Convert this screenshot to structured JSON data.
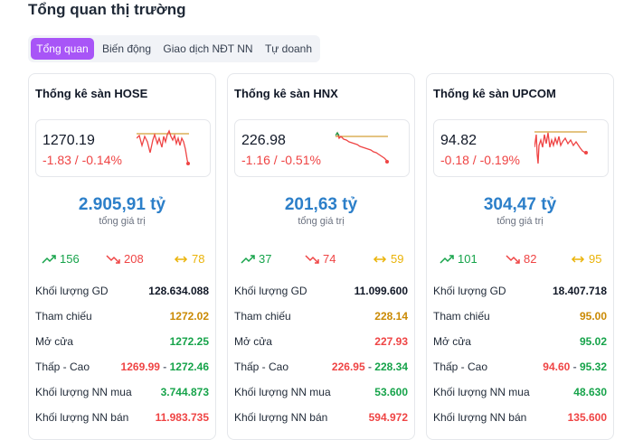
{
  "page": {
    "title": "Tổng quan thị trường"
  },
  "tabs": [
    {
      "label": "Tổng quan"
    },
    {
      "label": "Biến động"
    },
    {
      "label": "Giao dịch NĐT NN"
    },
    {
      "label": "Tự doanh"
    }
  ],
  "colors": {
    "accent": "#a855f7",
    "up": "#16a34a",
    "down": "#ef4444",
    "reference": "#ca8a04",
    "value": "#2c7fc9"
  },
  "exchanges": [
    {
      "title": "Thống kê sàn HOSE",
      "index": "1270.19",
      "change": "-1.83 / -0.14%",
      "total_value": "2.905,91 tỷ",
      "total_value_label": "tổng giá trị",
      "advancers": "156",
      "decliners": "208",
      "unchanged": "78",
      "stats": {
        "volume_label": "Khối lượng GD",
        "volume": "128.634.088",
        "ref_label": "Tham chiếu",
        "ref": "1272.02",
        "open_label": "Mở cửa",
        "open": "1272.25",
        "range_label": "Thấp - Cao",
        "low": "1269.99",
        "high": "1272.46",
        "foreign_buy_label": "Khối lượng NN mua",
        "foreign_buy": "3.744.873",
        "foreign_sell_label": "Khối lượng NN bán",
        "foreign_sell": "11.983.735"
      }
    },
    {
      "title": "Thống kê sàn HNX",
      "index": "226.98",
      "change": "-1.16 / -0.51%",
      "total_value": "201,63 tỷ",
      "total_value_label": "tổng giá trị",
      "advancers": "37",
      "decliners": "74",
      "unchanged": "59",
      "stats": {
        "volume_label": "Khối lượng GD",
        "volume": "11.099.600",
        "ref_label": "Tham chiếu",
        "ref": "228.14",
        "open_label": "Mở cửa",
        "open": "227.93",
        "range_label": "Thấp - Cao",
        "low": "226.95",
        "high": "228.34",
        "foreign_buy_label": "Khối lượng NN mua",
        "foreign_buy": "53.600",
        "foreign_sell_label": "Khối lượng NN bán",
        "foreign_sell": "594.972"
      }
    },
    {
      "title": "Thống kê sàn UPCOM",
      "index": "94.82",
      "change": "-0.18 / -0.19%",
      "total_value": "304,47 tỷ",
      "total_value_label": "tổng giá trị",
      "advancers": "101",
      "decliners": "82",
      "unchanged": "95",
      "stats": {
        "volume_label": "Khối lượng GD",
        "volume": "18.407.718",
        "ref_label": "Tham chiếu",
        "ref": "95.00",
        "open_label": "Mở cửa",
        "open": "95.02",
        "range_label": "Thấp - Cao",
        "low": "94.60",
        "high": "95.32",
        "foreign_buy_label": "Khối lượng NN mua",
        "foreign_buy": "48.630",
        "foreign_sell_label": "Khối lượng NN bán",
        "foreign_sell": "135.600"
      }
    }
  ]
}
